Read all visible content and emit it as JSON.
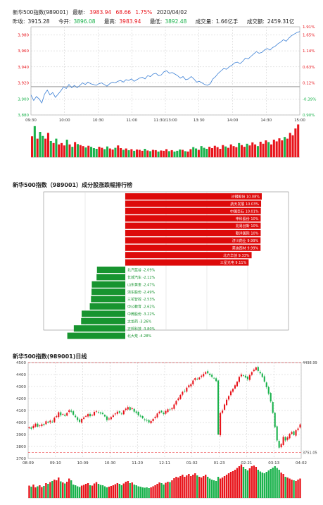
{
  "header": {
    "name": "新华500指数(989001)",
    "latest_label": "最新:",
    "latest_value": "3983.94",
    "change": "68.66",
    "change_pct": "1.75%",
    "date": "2020/04/02",
    "prev_close_label": "昨收:",
    "prev_close_value": "3915.28",
    "open_label": "今开:",
    "open_value": "3896.08",
    "high_label": "最高:",
    "high_value": "3983.94",
    "low_label": "最低:",
    "low_value": "3892.48",
    "volume_label": "成交量:",
    "volume_value": "1.66亿手",
    "amount_label": "成交额:",
    "amount_value": "2459.31亿"
  },
  "colors": {
    "up": "#e8141b",
    "down": "#19b24b",
    "line": "#3a7fd5",
    "grid": "#c8c8c8"
  },
  "chart_data": [
    {
      "type": "line",
      "title": "",
      "x_ticks": [
        "09:30",
        "10:00",
        "10:30",
        "11:00",
        "11:30/13:00",
        "13:30",
        "14:00",
        "14:30",
        "15:00"
      ],
      "y_ticks": [
        "3,980",
        "3,960",
        "3,940",
        "3,920",
        "3,900",
        "3,880"
      ],
      "pct_ticks": [
        "1.91%",
        "1.65%",
        "1.14%",
        "0.63%",
        "0.12%",
        "-0.39%",
        "0.90%"
      ],
      "ylim": [
        3880,
        3990
      ],
      "prev_close": 3915.28,
      "series": [
        {
          "values": [
            3905,
            3898,
            3903,
            3900,
            3895,
            3906,
            3911,
            3905,
            3908,
            3902,
            3906,
            3910,
            3915,
            3913,
            3918,
            3914,
            3917,
            3914,
            3917,
            3920,
            3918,
            3921,
            3919,
            3918,
            3917,
            3919,
            3920,
            3918,
            3916,
            3919,
            3921,
            3920,
            3922,
            3923,
            3921,
            3924,
            3923,
            3925,
            3922,
            3924,
            3926,
            3927,
            3925,
            3929,
            3928,
            3931,
            3932,
            3929,
            3930,
            3934,
            3935,
            3932,
            3933,
            3931,
            3929,
            3926,
            3928,
            3924,
            3925,
            3928,
            3925,
            3921,
            3922,
            3920,
            3918,
            3917,
            3919,
            3925,
            3928,
            3932,
            3935,
            3938,
            3937,
            3940,
            3942,
            3945,
            3946,
            3944,
            3947,
            3951,
            3950,
            3953,
            3956,
            3959,
            3957,
            3958,
            3961,
            3963,
            3961,
            3964,
            3966,
            3969,
            3971,
            3974,
            3972,
            3976,
            3979,
            3981,
            3983,
            3984
          ]
        }
      ],
      "volume": [
        0.62,
        0.92,
        0.55,
        0.75,
        0.63,
        0.55,
        0.72,
        0.48,
        0.42,
        0.55,
        0.38,
        0.42,
        0.35,
        0.52,
        0.38,
        0.31,
        0.45,
        0.39,
        0.36,
        0.33,
        0.29,
        0.34,
        0.31,
        0.27,
        0.25,
        0.31,
        0.28,
        0.24,
        0.32,
        0.26,
        0.23,
        0.28,
        0.35,
        0.27,
        0.22,
        0.26,
        0.21,
        0.24,
        0.19,
        0.23,
        0.22,
        0.19,
        0.25,
        0.2,
        0.18,
        0.22,
        0.21,
        0.17,
        0.2,
        0.19,
        0.24,
        0.18,
        0.21,
        0.17,
        0.19,
        0.23,
        0.22,
        0.18,
        0.17,
        0.24,
        0.3,
        0.26,
        0.22,
        0.33,
        0.28,
        0.25,
        0.31,
        0.27,
        0.34,
        0.3,
        0.25,
        0.36,
        0.32,
        0.28,
        0.38,
        0.33,
        0.3,
        0.42,
        0.36,
        0.31,
        0.4,
        0.35,
        0.44,
        0.38,
        0.33,
        0.46,
        0.4,
        0.5,
        0.45,
        0.38,
        0.52,
        0.47,
        0.56,
        0.5,
        0.6,
        0.55,
        0.72,
        0.65,
        0.85,
        0.97
      ]
    },
    {
      "type": "bar",
      "title": "新华500指数（989001）成分股涨跌幅排行榜",
      "categories": [
        "沙钢股份",
        "航天发展",
        "中国巨石",
        "申科股份",
        "兆易创新",
        "联洋国际",
        "济川药业",
        "美迪西材",
        "北方华创",
        "三星光电",
        "北汽蓝谷",
        "长城汽车",
        "山东黄金",
        "浙东股份",
        "三花智控",
        "中公教育",
        "中微股份",
        "太龙药",
        "正邦科技",
        "北大荒"
      ],
      "values": [
        10.08,
        10.03,
        10.01,
        10,
        10,
        10,
        9.99,
        9.99,
        9.33,
        9.11,
        -2.09,
        -2.12,
        -2.47,
        -2.49,
        -2.53,
        -2.62,
        -3.22,
        -3.26,
        -3.8,
        -4.28
      ],
      "labels": [
        "沙钢股份 10.08%",
        "航天发展 10.03%",
        "中国巨石 10.01%",
        "申科股份 10%",
        "兆易创新 10%",
        "联洋国际 10%",
        "济川药业 9.99%",
        "美迪西材 9.99%",
        "北方华创 9.33%",
        "三星光电 9.11%",
        "北汽蓝谷 -2.09%",
        "长城汽车 -2.12%",
        "山东黄金 -2.47%",
        "浙东股份 -2.49%",
        "三花智控 -2.53%",
        "中公教育 -2.62%",
        "中微股份 -3.22%",
        "太龙药 -3.26%",
        "正邦科技 -3.80%",
        "北大荒 -4.28%"
      ]
    },
    {
      "type": "candlestick",
      "title": "新华500指数(989001)日线",
      "x_ticks": [
        "08-09",
        "09-10",
        "10-09",
        "10-30",
        "11-20",
        "12-11",
        "01-02",
        "01-23",
        "02-21",
        "03-13",
        "04-02"
      ],
      "y_ticks": [
        "4500",
        "4400",
        "4300",
        "4200",
        "4100",
        "4000",
        "3900",
        "3800",
        "3700"
      ],
      "ylim": [
        3700,
        4500
      ],
      "max_label": "4498.99",
      "min_label": "3751.05",
      "max_value": 4498.99,
      "min_value": 3751.05,
      "closes": [
        3960,
        3948,
        3972,
        3990,
        3965,
        3975,
        3985,
        3978,
        4010,
        3998,
        4015,
        4005,
        4040,
        4052,
        4085,
        4060,
        4070,
        4055,
        4080,
        4102,
        4090,
        4065,
        4045,
        4020,
        4005,
        4030,
        4042,
        4055,
        4070,
        4052,
        4062,
        4088,
        4095,
        4085,
        4075,
        4070,
        4050,
        4020,
        4032,
        4045,
        4060,
        4075,
        4090,
        4082,
        4070,
        4100,
        4115,
        4128,
        4105,
        4118,
        4090,
        4080,
        4060,
        4050,
        4035,
        4022,
        4015,
        4000,
        4012,
        4030,
        4048,
        4075,
        4090,
        4085,
        4070,
        4095,
        4110,
        4105,
        4120,
        4150,
        4180,
        4200,
        4230,
        4255,
        4260,
        4290,
        4310,
        4320,
        4350,
        4370,
        4360,
        4375,
        4390,
        4405,
        4420,
        4410,
        4395,
        4380,
        4370,
        4345,
        3900,
        4080,
        4100,
        4150,
        4190,
        4220,
        4260,
        4280,
        4310,
        4340,
        4380,
        4400,
        4390,
        4375,
        4360,
        4395,
        4420,
        4440,
        4460,
        4430,
        4410,
        4380,
        4340,
        4295,
        4240,
        4175,
        4080,
        3960,
        3850,
        3790,
        3820,
        3880,
        3850,
        3875,
        3905,
        3920,
        3895,
        3935,
        3950,
        3984
      ],
      "volume": [
        0.35,
        0.32,
        0.38,
        0.3,
        0.33,
        0.36,
        0.31,
        0.34,
        0.42,
        0.4,
        0.45,
        0.48,
        0.52,
        0.5,
        0.58,
        0.47,
        0.44,
        0.41,
        0.46,
        0.55,
        0.5,
        0.38,
        0.36,
        0.33,
        0.31,
        0.35,
        0.37,
        0.4,
        0.42,
        0.36,
        0.35,
        0.41,
        0.45,
        0.4,
        0.37,
        0.36,
        0.33,
        0.3,
        0.32,
        0.34,
        0.36,
        0.39,
        0.42,
        0.4,
        0.36,
        0.41,
        0.46,
        0.48,
        0.42,
        0.44,
        0.38,
        0.36,
        0.33,
        0.32,
        0.3,
        0.29,
        0.3,
        0.28,
        0.3,
        0.33,
        0.36,
        0.4,
        0.44,
        0.42,
        0.38,
        0.43,
        0.46,
        0.45,
        0.5,
        0.56,
        0.6,
        0.58,
        0.62,
        0.66,
        0.6,
        0.64,
        0.68,
        0.62,
        0.66,
        0.7,
        0.64,
        0.6,
        0.58,
        0.62,
        0.66,
        0.6,
        0.55,
        0.52,
        0.5,
        0.48,
        0.6,
        0.55,
        0.58,
        0.62,
        0.66,
        0.7,
        0.74,
        0.76,
        0.8,
        0.85,
        0.9,
        0.95,
        0.88,
        0.82,
        0.78,
        0.84,
        0.9,
        0.92,
        0.88,
        0.8,
        0.75,
        0.72,
        0.7,
        0.74,
        0.78,
        0.82,
        0.86,
        0.9,
        0.85,
        0.8,
        0.72,
        0.68,
        0.6,
        0.58,
        0.55,
        0.52,
        0.5,
        0.48,
        0.52,
        0.55
      ]
    }
  ]
}
